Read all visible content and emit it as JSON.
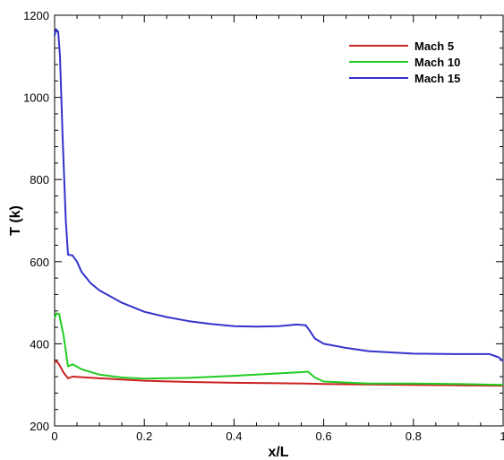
{
  "chart_data": {
    "type": "line",
    "xlabel": "x/L",
    "ylabel": "T (k)",
    "xlim": [
      0,
      1
    ],
    "ylim": [
      200,
      1200
    ],
    "xticks": [
      0,
      0.2,
      0.4,
      0.6,
      0.8,
      1
    ],
    "xtick_labels": [
      "0",
      "0.2",
      "0.4",
      "0.6",
      "0.8",
      "1"
    ],
    "yticks": [
      200,
      400,
      600,
      800,
      1000,
      1200
    ],
    "ytick_labels": [
      "200",
      "400",
      "600",
      "800",
      "1000",
      "1200"
    ],
    "grid": false,
    "legend_position": "top-right",
    "series": [
      {
        "name": "Mach 5",
        "color": "#cc2222",
        "x": [
          0,
          0.005,
          0.01,
          0.02,
          0.03,
          0.04,
          0.1,
          0.2,
          0.3,
          0.4,
          0.5,
          0.56,
          0.6,
          0.7,
          0.8,
          0.9,
          1.0
        ],
        "y": [
          355,
          357,
          350,
          330,
          316,
          320,
          316,
          310,
          307,
          305,
          304,
          303,
          302,
          301,
          300,
          299,
          298
        ]
      },
      {
        "name": "Mach 10",
        "color": "#22cc22",
        "x": [
          0,
          0.004,
          0.01,
          0.02,
          0.03,
          0.04,
          0.06,
          0.1,
          0.15,
          0.2,
          0.3,
          0.4,
          0.5,
          0.55,
          0.565,
          0.58,
          0.6,
          0.7,
          0.8,
          0.9,
          1.0
        ],
        "y": [
          462,
          474,
          473,
          420,
          345,
          350,
          338,
          325,
          318,
          315,
          317,
          322,
          328,
          331,
          332,
          318,
          308,
          303,
          303,
          302,
          300
        ]
      },
      {
        "name": "Mach 15",
        "color": "#3333cc",
        "x": [
          0,
          0.003,
          0.008,
          0.012,
          0.018,
          0.025,
          0.03,
          0.04,
          0.05,
          0.06,
          0.08,
          0.1,
          0.15,
          0.2,
          0.25,
          0.3,
          0.35,
          0.4,
          0.45,
          0.5,
          0.54,
          0.56,
          0.57,
          0.58,
          0.6,
          0.65,
          0.7,
          0.8,
          0.9,
          0.97,
          0.99,
          1.0
        ],
        "y": [
          1150,
          1166,
          1160,
          1100,
          900,
          700,
          617,
          615,
          600,
          575,
          548,
          530,
          500,
          478,
          465,
          455,
          448,
          443,
          442,
          443,
          447,
          445,
          430,
          413,
          400,
          390,
          382,
          376,
          375,
          375,
          367,
          358
        ]
      }
    ]
  }
}
